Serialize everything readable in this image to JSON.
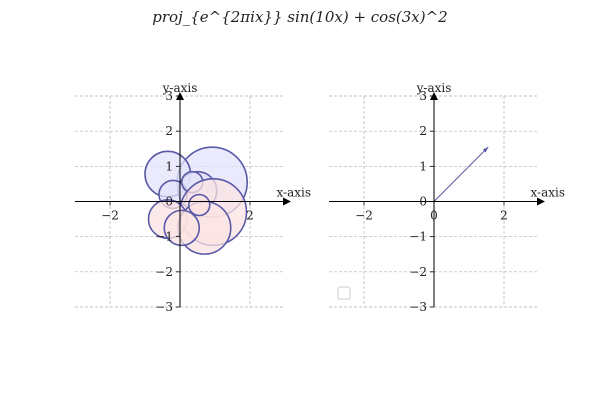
{
  "chart_data": [
    {
      "type": "line",
      "title": "proj_{e^{2πix}} sin(10x) + cos(3x)^2",
      "xlabel": "x-axis",
      "ylabel": "y-axis",
      "xlim": [
        -3,
        3
      ],
      "ylim": [
        -3,
        3
      ],
      "xticks": [
        -2,
        0,
        2
      ],
      "yticks": [
        -3,
        -2,
        -1,
        0,
        1,
        2,
        3
      ],
      "grid": true,
      "circle_fill_positive": "#e3e3fb",
      "circle_fill_negative": "#fbe3e3",
      "circle_stroke": "#5a5aa8",
      "circles": [
        {
          "x": 0.92,
          "y": 0.55,
          "r": 1.0,
          "sign": "positive"
        },
        {
          "x": -0.35,
          "y": 0.78,
          "r": 0.65,
          "sign": "positive"
        },
        {
          "x": 0.5,
          "y": 0.3,
          "r": 0.55,
          "sign": "positive"
        },
        {
          "x": -0.2,
          "y": 0.2,
          "r": 0.4,
          "sign": "positive"
        },
        {
          "x": 0.35,
          "y": 0.55,
          "r": 0.3,
          "sign": "positive"
        },
        {
          "x": 0.95,
          "y": -0.3,
          "r": 0.95,
          "sign": "negative"
        },
        {
          "x": -0.35,
          "y": -0.5,
          "r": 0.55,
          "sign": "negative"
        },
        {
          "x": 0.7,
          "y": -0.75,
          "r": 0.75,
          "sign": "negative"
        },
        {
          "x": 0.05,
          "y": -0.75,
          "r": 0.5,
          "sign": "negative"
        },
        {
          "x": 0.55,
          "y": -0.1,
          "r": 0.3,
          "sign": "negative"
        }
      ]
    },
    {
      "type": "line",
      "xlabel": "x-axis",
      "ylabel": "y-axis",
      "xlim": [
        -3,
        3
      ],
      "ylim": [
        -3,
        3
      ],
      "xticks": [
        -2,
        0,
        2
      ],
      "yticks": [
        -3,
        -2,
        -1,
        0,
        1,
        2,
        3
      ],
      "grid": true,
      "legend": "bottom-left",
      "vector_color": "#5a5aa8",
      "vector": {
        "x0": 0,
        "y0": 0,
        "x1": 1.55,
        "y1": 1.55
      }
    }
  ]
}
